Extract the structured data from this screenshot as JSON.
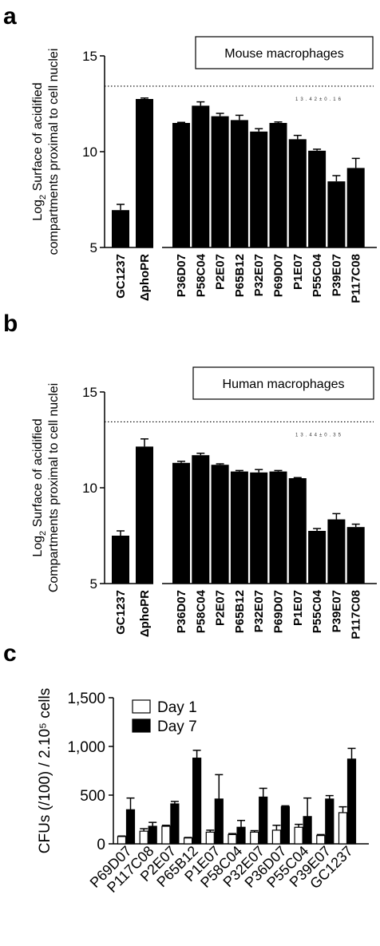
{
  "chart_data": [
    {
      "panel": "a",
      "type": "bar",
      "title": "",
      "box_label": "Mouse macrophages",
      "ylabel_lines": [
        "Log",
        "2",
        " Surface of acidified",
        "compartments proximal to cell nuclei"
      ],
      "ylim": [
        5,
        15
      ],
      "yticks": [
        "5",
        "10",
        "15"
      ],
      "reference_line": 13.42,
      "reference_note": "13.42±0.16",
      "group1": {
        "categories": [
          "GC1237",
          "ΔphoPR"
        ],
        "values": [
          6.95,
          12.75
        ],
        "errors": [
          0.3,
          0.05
        ]
      },
      "group2": {
        "categories": [
          "P36D07",
          "P58C04",
          "P2E07",
          "P65B12",
          "P32E07",
          "P69D07",
          "P1E07",
          "P55C04",
          "P39E07",
          "P117C08"
        ],
        "values": [
          11.5,
          12.4,
          11.85,
          11.65,
          11.05,
          11.5,
          10.65,
          10.05,
          8.45,
          9.15
        ],
        "errors": [
          0.03,
          0.2,
          0.15,
          0.25,
          0.15,
          0.05,
          0.2,
          0.08,
          0.3,
          0.5
        ]
      }
    },
    {
      "panel": "b",
      "type": "bar",
      "title": "",
      "box_label": "Human macrophages",
      "ylabel_lines": [
        "Log",
        "2",
        " Surface of acidified",
        "Compartments proximal to cell nuclei"
      ],
      "ylim": [
        5,
        15
      ],
      "yticks": [
        "5",
        "10",
        "15"
      ],
      "reference_line": 13.44,
      "reference_note": "13.44±0.35",
      "group1": {
        "categories": [
          "GC1237",
          "ΔphoPR"
        ],
        "values": [
          7.5,
          12.15
        ],
        "errors": [
          0.25,
          0.4
        ]
      },
      "group2": {
        "categories": [
          "P36D07",
          "P58C04",
          "P2E07",
          "P65B12",
          "P32E07",
          "P69D07",
          "P1E07",
          "P55C04",
          "P39E07",
          "P117C08"
        ],
        "values": [
          11.3,
          11.7,
          11.2,
          10.85,
          10.8,
          10.85,
          10.5,
          7.75,
          8.35,
          7.95
        ],
        "errors": [
          0.08,
          0.1,
          0.05,
          0.05,
          0.15,
          0.05,
          0.03,
          0.12,
          0.3,
          0.15
        ]
      }
    },
    {
      "panel": "c",
      "type": "bar",
      "title": "",
      "ylabel": "CFUs (/100) / 2.10⁵ cells",
      "ylim": [
        0,
        1500
      ],
      "yticks": [
        "0",
        "500",
        "1,000",
        "1,500"
      ],
      "legend_placement": "top-left",
      "categories": [
        "P69D07",
        "P117C08",
        "P2E07",
        "P65B12",
        "P1E07",
        "P58C04",
        "P32E07",
        "P36D07",
        "P55C04",
        "P39E07",
        "GC1237"
      ],
      "series": [
        {
          "name": "Day 1",
          "fill": "#ffffff",
          "values": [
            75,
            130,
            180,
            60,
            120,
            95,
            120,
            140,
            170,
            85,
            320
          ],
          "errors": [
            5,
            25,
            10,
            5,
            20,
            10,
            15,
            50,
            30,
            10,
            60
          ]
        },
        {
          "name": "Day 7",
          "fill": "#000000",
          "values": [
            350,
            180,
            410,
            880,
            460,
            170,
            480,
            380,
            280,
            460,
            870
          ],
          "errors": [
            120,
            40,
            25,
            80,
            250,
            70,
            90,
            10,
            190,
            35,
            110
          ]
        }
      ]
    }
  ]
}
